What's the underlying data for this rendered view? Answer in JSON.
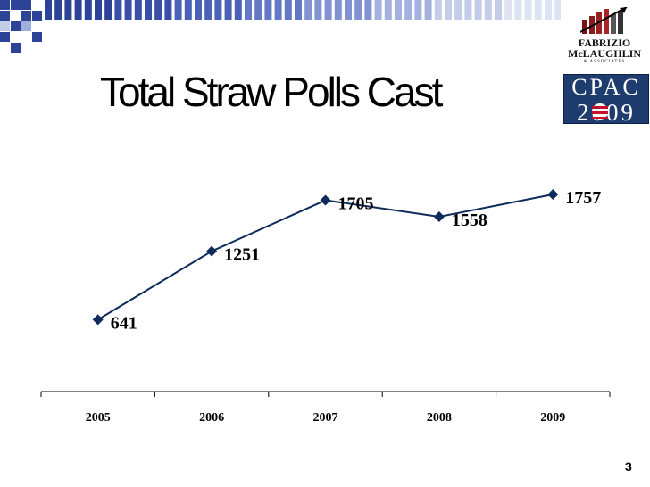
{
  "slide": {
    "title": "Total Straw Polls Cast",
    "page_number": "3"
  },
  "logos": {
    "fabrizio_line1": "FABRIZIO",
    "fabrizio_line2": "McLAUGHLIN",
    "fabrizio_line3": "& ASSOCIATES",
    "cpac_line1": "CPAC",
    "cpac_year": "2009"
  },
  "colors": {
    "series_line": "#0e2b5c",
    "marker": "#0e2b5c",
    "cpac_blue": "#1f3c6e",
    "banner_blue": "#3a50a8"
  },
  "chart_data": {
    "type": "line",
    "categories": [
      "2005",
      "2006",
      "2007",
      "2008",
      "2009"
    ],
    "series": [
      {
        "values": [
          641,
          1251,
          1705,
          1558,
          1757
        ]
      }
    ],
    "data_labels": [
      "641",
      "1251",
      "1705",
      "1558",
      "1757"
    ],
    "title": "Total Straw Polls Cast",
    "xlabel": "",
    "ylabel": "",
    "ylim": [
      0,
      1900
    ],
    "grid": false,
    "legend": "none",
    "marker": "diamond"
  }
}
